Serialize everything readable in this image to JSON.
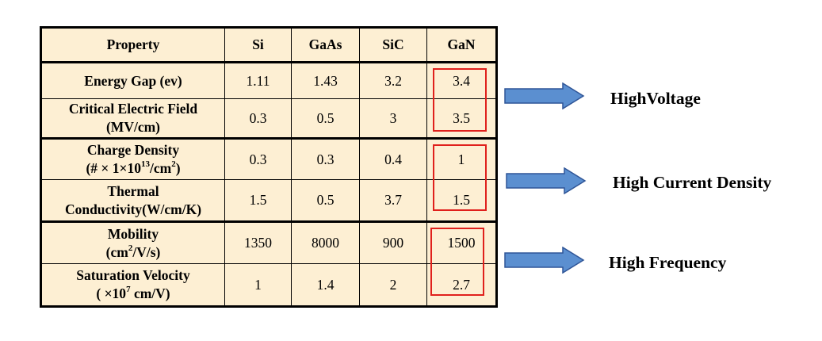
{
  "table": {
    "headers": [
      "Property",
      "Si",
      "GaAs",
      "SiC",
      "GaN"
    ],
    "rows": [
      {
        "property": [
          "Energy Gap (ev)"
        ],
        "values": [
          "1.11",
          "1.43",
          "3.2",
          "3.4"
        ]
      },
      {
        "property": [
          "Critical Electric Field",
          "(MV/cm)"
        ],
        "values": [
          "0.3",
          "0.5",
          "3",
          "3.5"
        ]
      },
      {
        "property": [
          "Charge Density",
          "(# × 1×10",
          "13",
          "/cm",
          "2",
          ")"
        ],
        "values": [
          "0.3",
          "0.3",
          "0.4",
          "1"
        ]
      },
      {
        "property": [
          "Thermal",
          "Conductivity(W/cm/K)"
        ],
        "values": [
          "1.5",
          "0.5",
          "3.7",
          "1.5"
        ]
      },
      {
        "property": [
          "Mobility",
          "(cm",
          "2",
          "/V/s)"
        ],
        "values": [
          "1350",
          "8000",
          "900",
          "1500"
        ]
      },
      {
        "property": [
          "Saturation Velocity",
          "( ×10",
          "7",
          " cm/V)"
        ],
        "values": [
          "1",
          "1.4",
          "2",
          "2.7"
        ]
      }
    ]
  },
  "annotations": [
    {
      "label": "HighVoltage"
    },
    {
      "label": "High Current Density"
    },
    {
      "label": "High Frequency"
    }
  ],
  "colors": {
    "table_background": "#fdefd3",
    "highlight_border": "#e0201c",
    "arrow_fill": "#5b8fd0",
    "arrow_stroke": "#2f5597"
  }
}
